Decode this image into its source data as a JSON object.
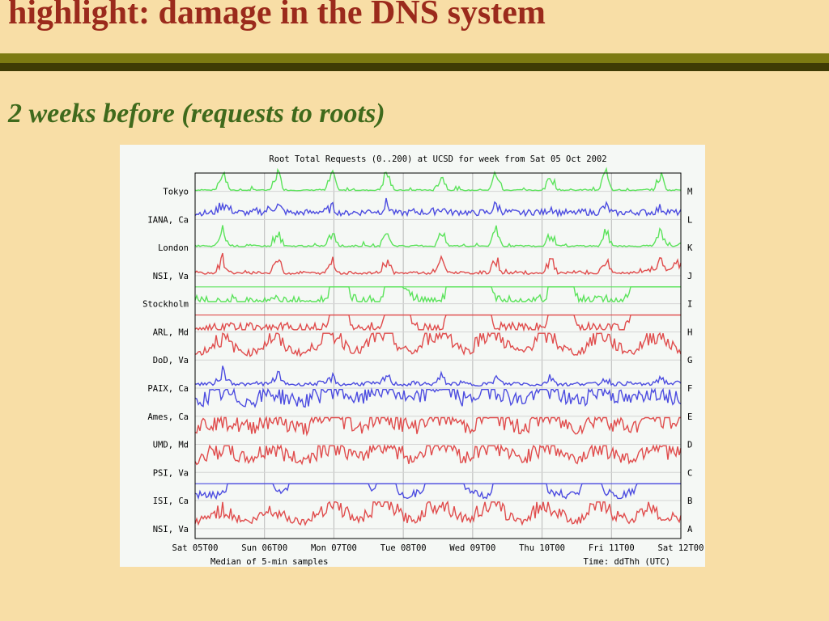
{
  "slide": {
    "title": "highlight: damage in the DNS system",
    "subtitle": "2 weeks before (requests to roots)"
  },
  "chart_data": {
    "type": "line",
    "title": "Root Total Requests (0..200) at UCSD for week from Sat 05 Oct 2002",
    "xlabel": "Median of 5-min samples",
    "time_label": "Time: ddThh (UTC)",
    "x_ticks": [
      "Sat 05T00",
      "Sun 06T00",
      "Mon 07T00",
      "Tue 08T00",
      "Wed 09T00",
      "Thu 10T00",
      "Fri 11T00",
      "Sat 12T00"
    ],
    "ylim": [
      0,
      200
    ],
    "grid": true,
    "series": [
      {
        "name": "Tokyo",
        "root": "M",
        "color": "#5be35b",
        "baseline": 8,
        "style": "spiky",
        "values": [
          2,
          3,
          2,
          2,
          35,
          3,
          2,
          2,
          2,
          3,
          2,
          2,
          35,
          3,
          2,
          2,
          2,
          2,
          3,
          2,
          30,
          2,
          2,
          3,
          2,
          2,
          2,
          3,
          35,
          2,
          2,
          2,
          2,
          3,
          2,
          2,
          30,
          2,
          3,
          2,
          2,
          2,
          3,
          2,
          35,
          2,
          2,
          3,
          2,
          2,
          2,
          2,
          30,
          3,
          2,
          2,
          2,
          3,
          2,
          2,
          35,
          2,
          3,
          2,
          2,
          2,
          3,
          2,
          30,
          2,
          2,
          3
        ]
      },
      {
        "name": "IANA, Ca",
        "root": "L",
        "color": "#4c4ce0",
        "baseline": 8,
        "style": "noisy",
        "values": [
          10,
          12,
          11,
          14,
          30,
          18,
          13,
          12,
          11,
          15,
          13,
          20,
          25,
          14,
          12,
          11,
          13,
          12,
          15,
          14,
          22,
          12,
          11,
          13,
          12,
          14,
          16,
          13,
          28,
          12,
          11,
          12,
          14,
          13,
          12,
          15,
          20,
          13,
          12,
          14,
          12,
          11,
          13,
          12,
          26,
          14,
          13,
          12,
          11,
          13,
          14,
          12,
          22,
          12,
          13,
          11,
          12,
          14,
          12,
          13,
          24,
          12,
          11,
          13,
          12,
          14,
          12,
          13,
          20,
          15,
          12,
          13
        ]
      },
      {
        "name": "London",
        "root": "K",
        "color": "#5be35b",
        "baseline": 8,
        "style": "spiky",
        "values": [
          3,
          3,
          2,
          3,
          30,
          4,
          3,
          2,
          3,
          3,
          3,
          2,
          28,
          3,
          2,
          3,
          3,
          2,
          3,
          3,
          26,
          3,
          2,
          3,
          3,
          3,
          2,
          3,
          30,
          3,
          3,
          2,
          3,
          3,
          3,
          2,
          26,
          3,
          3,
          3,
          2,
          3,
          3,
          3,
          30,
          2,
          3,
          3,
          3,
          3,
          2,
          3,
          26,
          3,
          3,
          2,
          3,
          3,
          3,
          2,
          30,
          3,
          3,
          3,
          2,
          3,
          3,
          3,
          26,
          3,
          3,
          8
        ]
      },
      {
        "name": "NSI, Va",
        "root": "J",
        "color": "#e04c4c",
        "baseline": 8,
        "style": "spiky",
        "values": [
          4,
          5,
          4,
          6,
          30,
          6,
          5,
          4,
          5,
          6,
          5,
          4,
          32,
          5,
          4,
          5,
          6,
          5,
          4,
          5,
          28,
          5,
          4,
          6,
          5,
          4,
          5,
          6,
          30,
          5,
          4,
          5,
          6,
          5,
          4,
          5,
          28,
          5,
          6,
          5,
          4,
          5,
          6,
          5,
          30,
          4,
          5,
          6,
          5,
          4,
          5,
          6,
          28,
          5,
          4,
          5,
          6,
          5,
          4,
          5,
          30,
          6,
          5,
          4,
          5,
          6,
          10,
          12,
          28,
          14,
          16,
          22
        ]
      },
      {
        "name": "Stockholm",
        "root": "I",
        "color": "#5be35b",
        "baseline": 2,
        "style": "down",
        "values": [
          45,
          50,
          48,
          52,
          50,
          40,
          48,
          52,
          50,
          48,
          50,
          52,
          48,
          50,
          52,
          50,
          45,
          48,
          50,
          42,
          5,
          5,
          5,
          40,
          48,
          52,
          50,
          48,
          5,
          5,
          5,
          8,
          35,
          48,
          50,
          52,
          48,
          5,
          5,
          5,
          5,
          5,
          5,
          5,
          45,
          50,
          52,
          48,
          50,
          52,
          48,
          45,
          5,
          5,
          5,
          5,
          40,
          48,
          52,
          50,
          48,
          52,
          50,
          42,
          5,
          5,
          5,
          5,
          5,
          5,
          5,
          5
        ]
      },
      {
        "name": "ARL, Md",
        "root": "H",
        "color": "#e04c4c",
        "baseline": 2,
        "style": "down",
        "values": [
          40,
          45,
          42,
          48,
          45,
          40,
          44,
          46,
          42,
          45,
          44,
          40,
          42,
          45,
          40,
          44,
          42,
          45,
          40,
          38,
          5,
          5,
          5,
          35,
          42,
          45,
          40,
          38,
          5,
          5,
          5,
          5,
          38,
          45,
          42,
          44,
          40,
          5,
          5,
          5,
          5,
          5,
          5,
          5,
          42,
          45,
          40,
          44,
          45,
          42,
          40,
          38,
          5,
          5,
          5,
          5,
          40,
          45,
          44,
          42,
          40,
          45,
          42,
          40,
          5,
          5,
          5,
          5,
          5,
          5,
          5,
          5
        ]
      },
      {
        "name": "DoD, Va",
        "root": "G",
        "color": "#e04c4c",
        "baseline": 8,
        "style": "wave",
        "values": [
          10,
          15,
          20,
          35,
          40,
          30,
          20,
          15,
          12,
          18,
          28,
          40,
          38,
          25,
          18,
          14,
          12,
          20,
          35,
          50,
          52,
          45,
          30,
          20,
          15,
          25,
          40,
          50,
          48,
          35,
          22,
          16,
          14,
          24,
          42,
          55,
          55,
          50,
          30,
          20,
          15,
          30,
          45,
          55,
          50,
          38,
          24,
          16,
          14,
          26,
          44,
          50,
          45,
          30,
          20,
          15,
          12,
          22,
          38,
          48,
          44,
          32,
          22,
          16,
          14,
          24,
          40,
          50,
          46,
          34,
          22,
          18
        ]
      },
      {
        "name": "PAIX, Ca",
        "root": "F",
        "color": "#4c4ce0",
        "baseline": 8,
        "style": "noisy",
        "values": [
          6,
          8,
          7,
          10,
          30,
          12,
          8,
          7,
          6,
          9,
          8,
          7,
          25,
          9,
          7,
          6,
          8,
          7,
          9,
          8,
          20,
          7,
          6,
          8,
          7,
          9,
          8,
          7,
          22,
          8,
          7,
          6,
          9,
          8,
          7,
          8,
          20,
          7,
          8,
          9,
          7,
          6,
          8,
          7,
          18,
          8,
          7,
          9,
          8,
          7,
          6,
          8,
          20,
          8,
          7,
          6,
          8,
          9,
          7,
          8,
          18,
          7,
          8,
          9,
          7,
          8,
          6,
          8,
          20,
          9,
          8,
          10
        ]
      },
      {
        "name": "Ames, Ca",
        "root": "E",
        "color": "#4c4ce0",
        "baseline": 8,
        "style": "wave",
        "values": [
          25,
          30,
          35,
          40,
          42,
          38,
          32,
          28,
          26,
          32,
          38,
          42,
          40,
          35,
          30,
          28,
          26,
          32,
          40,
          50,
          55,
          52,
          42,
          34,
          28,
          36,
          48,
          55,
          55,
          48,
          38,
          30,
          28,
          36,
          50,
          58,
          58,
          55,
          42,
          32,
          28,
          38,
          50,
          55,
          52,
          44,
          36,
          30,
          28,
          36,
          46,
          52,
          50,
          42,
          34,
          30,
          28,
          34,
          44,
          50,
          48,
          40,
          34,
          30,
          28,
          36,
          46,
          52,
          50,
          44,
          36,
          40
        ]
      },
      {
        "name": "UMD, Md",
        "root": "D",
        "color": "#e04c4c",
        "baseline": 8,
        "style": "wave",
        "values": [
          30,
          35,
          40,
          45,
          48,
          42,
          36,
          32,
          30,
          36,
          42,
          48,
          46,
          40,
          34,
          30,
          28,
          34,
          42,
          52,
          56,
          52,
          44,
          36,
          30,
          38,
          50,
          56,
          56,
          50,
          40,
          32,
          30,
          38,
          52,
          58,
          58,
          56,
          44,
          34,
          30,
          40,
          52,
          56,
          54,
          46,
          38,
          32,
          30,
          38,
          48,
          54,
          52,
          44,
          36,
          32,
          30,
          36,
          46,
          52,
          50,
          42,
          36,
          32,
          30,
          38,
          48,
          54,
          52,
          46,
          38,
          40
        ]
      },
      {
        "name": "PSI, Va",
        "root": "C",
        "color": "#e04c4c",
        "baseline": 8,
        "style": "wave",
        "values": [
          22,
          28,
          34,
          40,
          44,
          38,
          30,
          26,
          24,
          30,
          38,
          44,
          42,
          34,
          28,
          24,
          22,
          30,
          40,
          52,
          56,
          50,
          40,
          30,
          24,
          34,
          48,
          56,
          56,
          48,
          36,
          28,
          24,
          34,
          50,
          58,
          58,
          54,
          40,
          30,
          26,
          36,
          50,
          56,
          52,
          42,
          32,
          26,
          24,
          34,
          46,
          54,
          50,
          40,
          32,
          26,
          24,
          32,
          44,
          50,
          46,
          36,
          30,
          26,
          24,
          34,
          46,
          52,
          50,
          42,
          32,
          36
        ]
      },
      {
        "name": "ISI, Ca",
        "root": "B",
        "color": "#4c4ce0",
        "baseline": 2,
        "style": "down",
        "values": [
          30,
          35,
          32,
          38,
          35,
          4,
          4,
          4,
          4,
          4,
          4,
          4,
          25,
          30,
          4,
          4,
          4,
          4,
          4,
          4,
          4,
          4,
          4,
          4,
          4,
          4,
          20,
          4,
          4,
          4,
          30,
          35,
          32,
          30,
          4,
          4,
          4,
          4,
          4,
          4,
          25,
          30,
          35,
          32,
          4,
          4,
          4,
          4,
          4,
          4,
          4,
          4,
          30,
          35,
          38,
          35,
          32,
          4,
          4,
          4,
          30,
          35,
          38,
          32,
          28,
          4,
          4,
          4,
          4,
          4,
          4,
          4
        ]
      },
      {
        "name": "NSI, Va",
        "root": "A",
        "color": "#e04c4c",
        "baseline": 8,
        "style": "wave",
        "values": [
          12,
          16,
          22,
          30,
          34,
          28,
          20,
          15,
          12,
          18,
          28,
          34,
          32,
          24,
          18,
          14,
          12,
          18,
          30,
          42,
          46,
          40,
          30,
          20,
          15,
          24,
          38,
          46,
          46,
          38,
          26,
          18,
          14,
          24,
          40,
          48,
          48,
          44,
          30,
          20,
          16,
          26,
          40,
          46,
          42,
          32,
          22,
          16,
          14,
          24,
          36,
          44,
          40,
          30,
          22,
          16,
          14,
          22,
          34,
          42,
          38,
          28,
          22,
          18,
          16,
          26,
          38,
          44,
          20,
          20,
          20,
          20
        ]
      }
    ]
  }
}
